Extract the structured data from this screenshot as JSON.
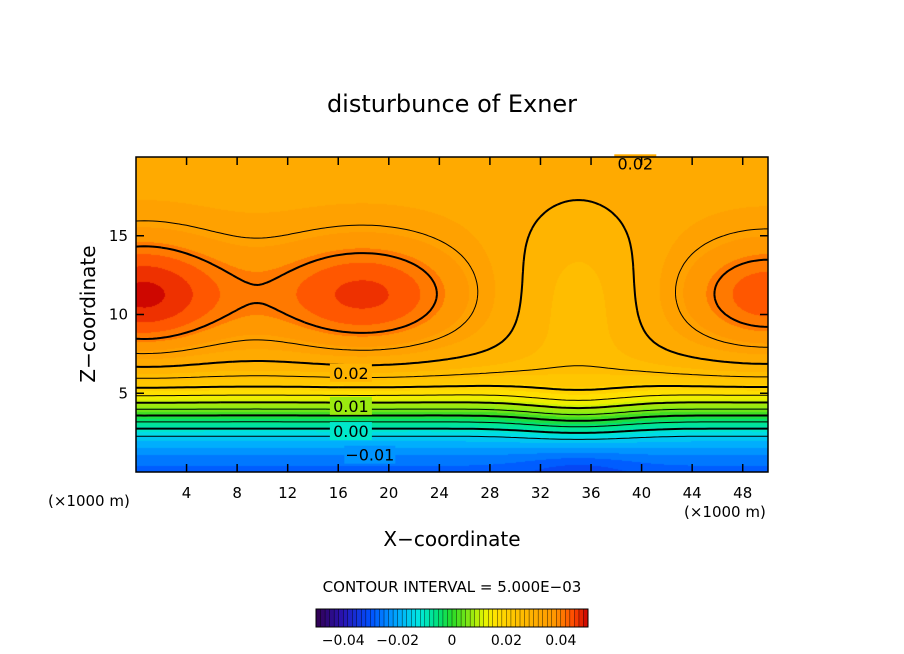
{
  "chart_data": {
    "type": "heatmap",
    "title": "disturbunce of Exner",
    "xlabel": "X−coordinate",
    "ylabel": "Z−coordinate",
    "x_unit_left": "(×1000 m)",
    "x_unit_right": "(×1000 m)",
    "xlim": [
      0,
      50
    ],
    "ylim": [
      0,
      20
    ],
    "x_ticks": [
      4,
      8,
      12,
      16,
      20,
      24,
      28,
      32,
      36,
      40,
      44,
      48
    ],
    "y_ticks": [
      5,
      10,
      15
    ],
    "contour_interval_text": "CONTOUR INTERVAL = 5.000E−03",
    "contour_labels": [
      {
        "text": "0.02",
        "x": 39.5,
        "z": 19.6
      },
      {
        "text": "0.02",
        "x": 17,
        "z": 6.3
      },
      {
        "text": "0.01",
        "x": 17,
        "z": 4.2
      },
      {
        "text": "0.00",
        "x": 17,
        "z": 2.6
      },
      {
        "text": "−0.01",
        "x": 18.5,
        "z": 1.1
      }
    ],
    "field_description": {
      "max_value": 0.04,
      "max_location": {
        "x": 18,
        "z": 11
      },
      "min_value": -0.015,
      "min_location": {
        "x": 35,
        "z": 0.2
      }
    },
    "colorbar": {
      "ticks": [
        "−0.04",
        "−0.02",
        "0",
        "0.02",
        "0.04"
      ],
      "range": [
        -0.05,
        0.05
      ]
    },
    "colors": {
      "background": "#ffffff",
      "axis": "#000000",
      "low": "#00e8e0",
      "mid": "#6de61c",
      "high": "#ff9600"
    }
  }
}
